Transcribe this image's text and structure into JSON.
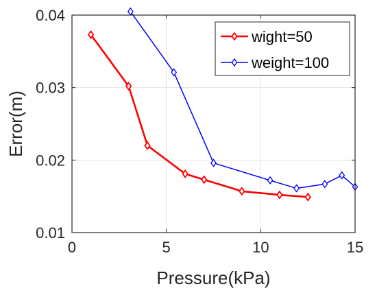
{
  "chart_data": {
    "type": "line",
    "title": "",
    "xlabel": "Pressure(kPa)",
    "ylabel": "Error(m)",
    "xlim": [
      0,
      15
    ],
    "ylim": [
      0.01,
      0.04
    ],
    "xticks": [
      0,
      5,
      10,
      15
    ],
    "xtick_labels": [
      "0",
      "5",
      "10",
      "15"
    ],
    "yticks": [
      0.01,
      0.02,
      0.03,
      0.04
    ],
    "ytick_labels": [
      "0.01",
      "0.02",
      "0.03",
      "0.04"
    ],
    "grid": true,
    "legend_position": "top-right",
    "series": [
      {
        "name": "wight=50",
        "color": "#ff0000",
        "marker": "diamond",
        "x": [
          1,
          3,
          4,
          6,
          7,
          9,
          11,
          12.5
        ],
        "y": [
          0.0373,
          0.0302,
          0.022,
          0.0181,
          0.0173,
          0.0157,
          0.0152,
          0.0149
        ]
      },
      {
        "name": "weight=100",
        "color": "#0000ff",
        "marker": "diamond",
        "x": [
          3.1,
          5.4,
          7.5,
          10.5,
          11.9,
          13.4,
          14.3,
          15
        ],
        "y": [
          0.0405,
          0.0321,
          0.0196,
          0.0172,
          0.0161,
          0.0167,
          0.0179,
          0.0163
        ]
      }
    ]
  }
}
